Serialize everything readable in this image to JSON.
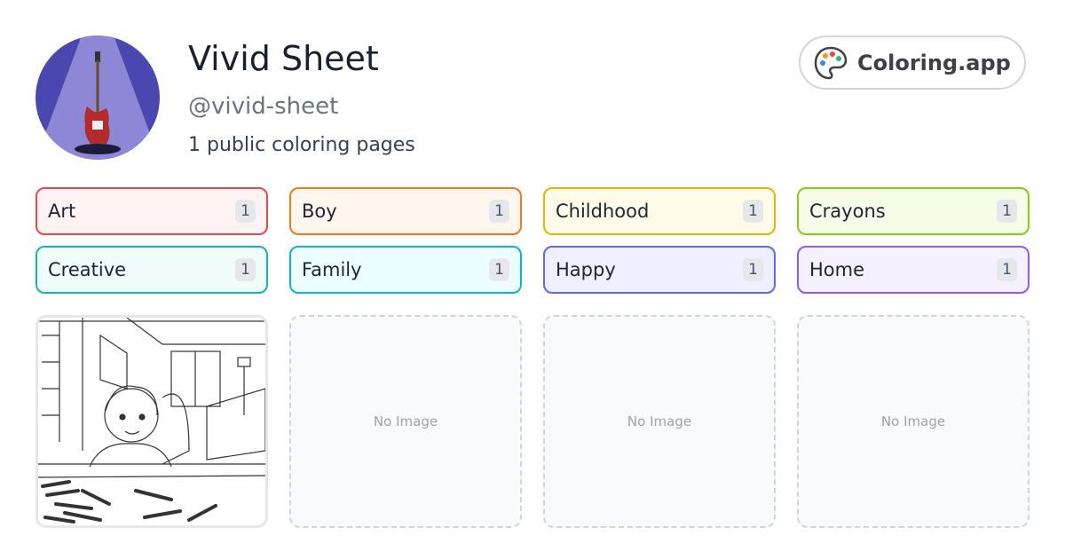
{
  "profile": {
    "name": "Vivid Sheet",
    "handle": "@vivid-sheet",
    "summary": "1 public coloring pages"
  },
  "badge": {
    "label": "Coloring.app"
  },
  "tags": [
    {
      "label": "Art",
      "count": 1
    },
    {
      "label": "Boy",
      "count": 1
    },
    {
      "label": "Childhood",
      "count": 1
    },
    {
      "label": "Crayons",
      "count": 1
    },
    {
      "label": "Creative",
      "count": 1
    },
    {
      "label": "Family",
      "count": 1
    },
    {
      "label": "Happy",
      "count": 1
    },
    {
      "label": "Home",
      "count": 1
    }
  ],
  "gallery": {
    "placeholders": [
      "No Image",
      "No Image",
      "No Image"
    ]
  }
}
